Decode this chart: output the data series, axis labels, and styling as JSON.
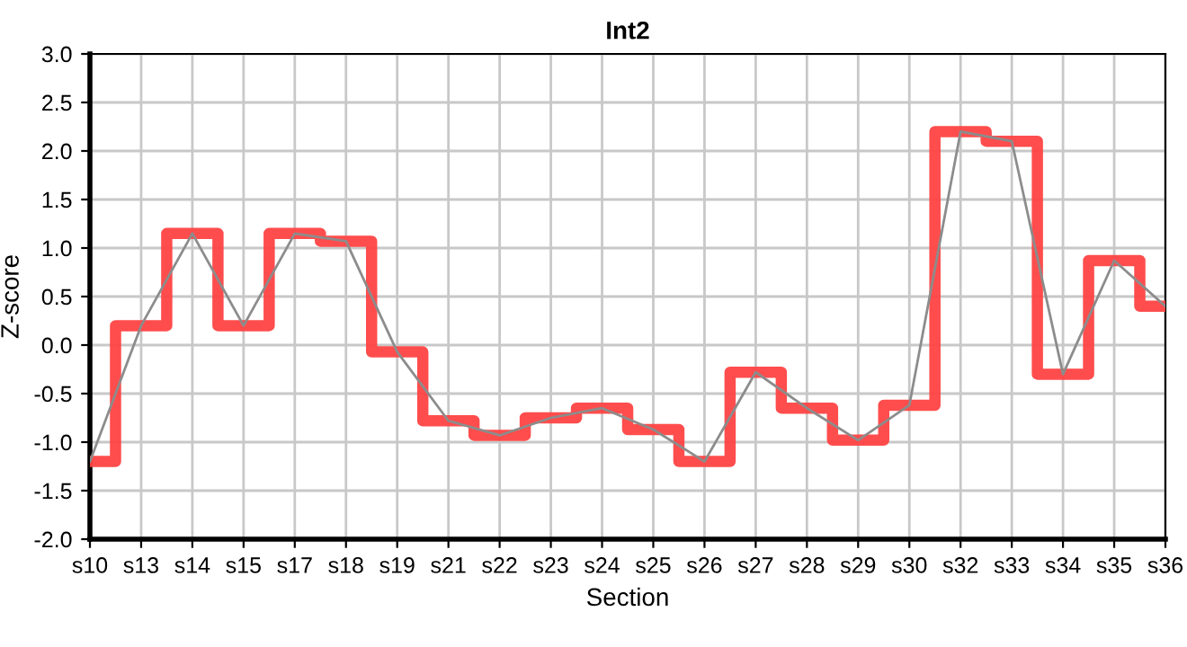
{
  "chart_data": {
    "type": "step",
    "title": "Int2",
    "xlabel": "Section",
    "ylabel": "Z-score",
    "categories": [
      "s10",
      "s13",
      "s14",
      "s15",
      "s17",
      "s18",
      "s19",
      "s21",
      "s22",
      "s23",
      "s24",
      "s25",
      "s26",
      "s27",
      "s28",
      "s29",
      "s30",
      "s32",
      "s33",
      "s34",
      "s35",
      "s36"
    ],
    "series": [
      {
        "color": "#ff4343",
        "values": [
          -1.2,
          0.2,
          1.15,
          0.2,
          1.15,
          1.07,
          -0.07,
          -0.78,
          -0.93,
          -0.75,
          -0.65,
          -0.87,
          -1.2,
          -0.28,
          -0.65,
          -0.98,
          -0.62,
          2.2,
          2.1,
          -0.3,
          0.87,
          0.4
        ]
      },
      {
        "type": "line",
        "color": "#8c8c8c",
        "values": [
          -1.2,
          0.2,
          1.15,
          0.2,
          1.15,
          1.07,
          -0.07,
          -0.78,
          -0.93,
          -0.75,
          -0.65,
          -0.87,
          -1.2,
          -0.28,
          -0.65,
          -0.98,
          -0.62,
          2.2,
          2.1,
          -0.3,
          0.87,
          0.4
        ]
      }
    ],
    "ylim": [
      -2,
      3
    ],
    "yticks": [
      {
        "value": -2,
        "label": "-2.0"
      },
      {
        "value": -1.5,
        "label": "-1.5"
      },
      {
        "value": -1,
        "label": "-1.0"
      },
      {
        "value": -0.5,
        "label": "-0.5"
      },
      {
        "value": 0,
        "label": "0.0"
      },
      {
        "value": 0.5,
        "label": "0.5"
      },
      {
        "value": 1,
        "label": "1.0"
      },
      {
        "value": 1.5,
        "label": "1.5"
      },
      {
        "value": 2,
        "label": "2.0"
      },
      {
        "value": 2.5,
        "label": "2.5"
      },
      {
        "value": 3,
        "label": "3.0"
      }
    ],
    "grid": true,
    "legend": false
  }
}
